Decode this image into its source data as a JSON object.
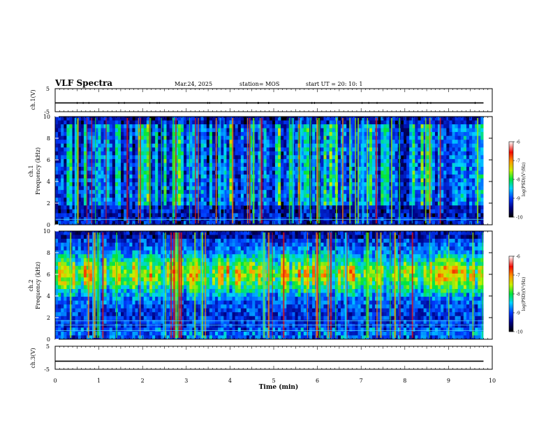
{
  "header": {
    "title": "VLF Spectra",
    "date": "Mar.24, 2025",
    "station": "station= MOS",
    "start": "start  UT =   20: 10: 1"
  },
  "chart_data": [
    {
      "type": "line",
      "panel": "ch1-waveform",
      "ylabel": "ch.1(V)",
      "yticks": [
        "5",
        "-5"
      ],
      "ylim": [
        -5,
        5
      ],
      "xlim": [
        0,
        10
      ],
      "signal_end_min": 9.8,
      "level": -1.2,
      "line_color": "#000000"
    },
    {
      "type": "heatmap",
      "panel": "ch1-spectrogram",
      "ylabel_channel": "ch.1",
      "ylabel": "Frequency  (kHz)",
      "yticks": [
        "0",
        "2",
        "4",
        "6",
        "8",
        "10"
      ],
      "ylim": [
        0,
        10
      ],
      "xlim": [
        0,
        10
      ],
      "signal_end_min": 9.8,
      "seed": 11,
      "level_offset": 0.0,
      "colorbar": {
        "label": "log(PSD)(V²/Hz)",
        "ticks": [
          "-6",
          "-7",
          "-8",
          "-9",
          "-10"
        ],
        "range": [
          -10,
          -6
        ]
      }
    },
    {
      "type": "heatmap",
      "panel": "ch2-spectrogram",
      "ylabel_channel": "ch.2",
      "ylabel": "Frequency  (kHz)",
      "yticks": [
        "0",
        "2",
        "4",
        "6",
        "8",
        "10"
      ],
      "ylim": [
        0,
        10
      ],
      "xlim": [
        0,
        10
      ],
      "signal_end_min": 9.8,
      "seed": 29,
      "level_offset": 1.3,
      "colorbar": {
        "label": "log(PSD)(V²/Hz)",
        "ticks": [
          "-6",
          "-7",
          "-8",
          "-9",
          "-10"
        ],
        "range": [
          -10,
          -6
        ]
      }
    },
    {
      "type": "line",
      "panel": "ch3-waveform",
      "ylabel": "ch.3(V)",
      "yticks": [
        "5",
        "-5"
      ],
      "ylim": [
        -5,
        5
      ],
      "xlim": [
        0,
        10
      ],
      "signal_end_min": 9.8,
      "level": -1.5,
      "line_color": "#000000"
    }
  ],
  "x_axis": {
    "label": "Time  (min)",
    "ticks": [
      "0",
      "1",
      "2",
      "3",
      "4",
      "5",
      "6",
      "7",
      "8",
      "9",
      "10"
    ]
  }
}
